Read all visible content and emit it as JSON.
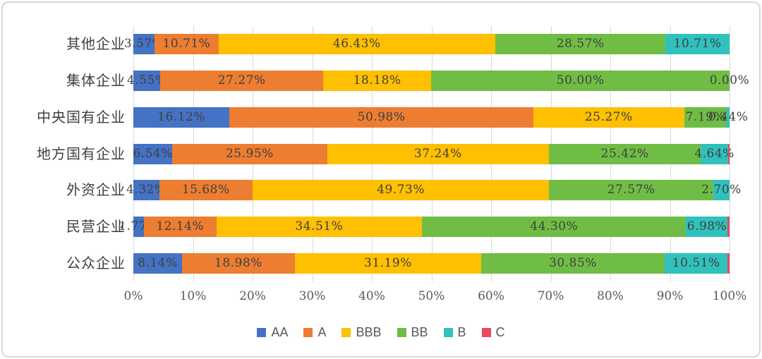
{
  "chart_data": {
    "type": "bar",
    "orientation": "horizontal",
    "stacked": true,
    "title": "",
    "xlabel": "",
    "ylabel": "",
    "xlim": [
      0,
      100
    ],
    "grid": "vertical",
    "legend_position": "bottom",
    "xticks": [
      "0%",
      "10%",
      "20%",
      "30%",
      "40%",
      "50%",
      "60%",
      "70%",
      "80%",
      "90%",
      "100%"
    ],
    "categories": [
      "其他企业",
      "集体企业",
      "中央国有企业",
      "地方国有企业",
      "外资企业",
      "民营企业",
      "公众企业"
    ],
    "series": [
      {
        "name": "AA",
        "color": "#4472C4",
        "values": [
          3.57,
          4.55,
          16.12,
          6.54,
          4.32,
          1.77,
          8.14
        ],
        "labels": [
          "3.57%",
          "4.55%",
          "16.12%",
          "6.54%",
          "4.32%",
          "1.77%",
          "8.14%"
        ]
      },
      {
        "name": "A",
        "color": "#ED7D31",
        "values": [
          10.71,
          27.27,
          50.98,
          25.95,
          15.68,
          12.14,
          18.98
        ],
        "labels": [
          "10.71%",
          "27.27%",
          "50.98%",
          "25.95%",
          "15.68%",
          "12.14%",
          "18.98%"
        ]
      },
      {
        "name": "BBB",
        "color": "#FEC000",
        "values": [
          46.43,
          18.18,
          25.27,
          37.24,
          49.73,
          34.51,
          31.19
        ],
        "labels": [
          "46.43%",
          "18.18%",
          "25.27%",
          "37.24%",
          "49.73%",
          "34.51%",
          "31.19%"
        ]
      },
      {
        "name": "BB",
        "color": "#70BD45",
        "values": [
          28.57,
          50.0,
          7.19,
          25.42,
          27.57,
          44.3,
          30.85
        ],
        "labels": [
          "28.57%",
          "50.00%",
          "7.19%",
          "25.42%",
          "27.57%",
          "44.30%",
          "30.85%"
        ]
      },
      {
        "name": "B",
        "color": "#31C1BD",
        "values": [
          10.71,
          0.0,
          0.44,
          4.64,
          2.7,
          6.98,
          10.51
        ],
        "labels": [
          "10.71%",
          "0.00%",
          "0.44%",
          "4.64%",
          "2.70%",
          "6.98%",
          "10.51%"
        ]
      },
      {
        "name": "C",
        "color": "#E8495C",
        "values": [
          0,
          0,
          0,
          0.21,
          0,
          0.3,
          0.33
        ],
        "labels": [
          "",
          "",
          "",
          "",
          "",
          "",
          ""
        ]
      }
    ]
  }
}
